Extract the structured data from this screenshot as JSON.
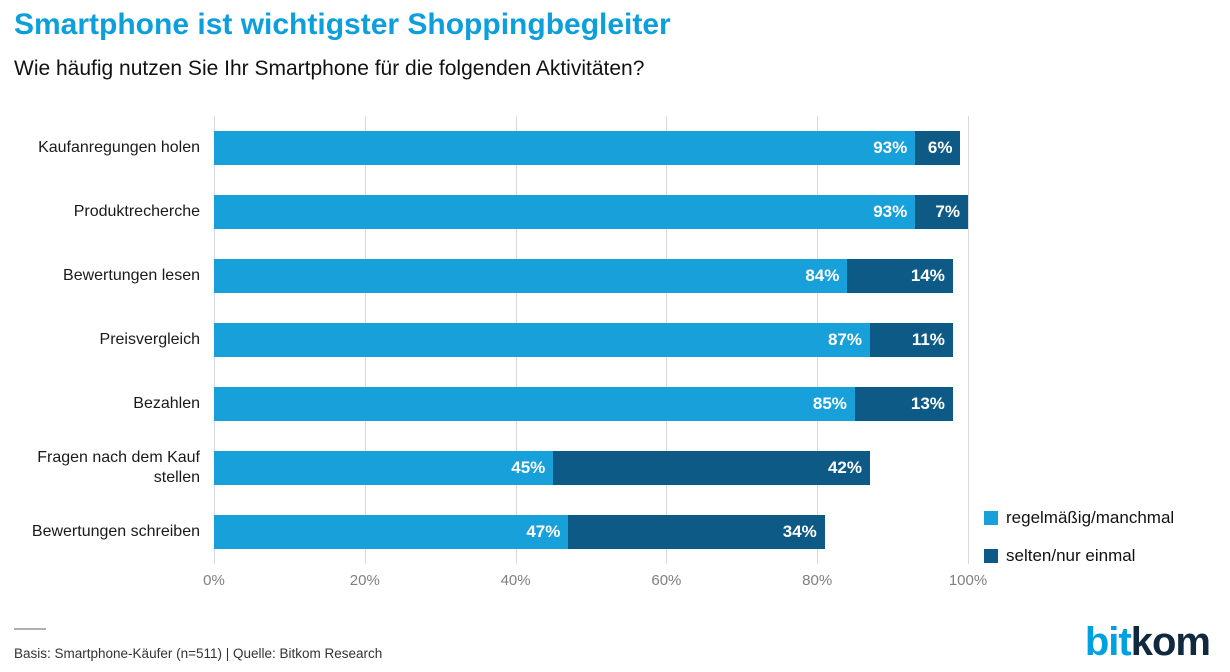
{
  "header": {
    "title": "Smartphone ist wichtigster Shoppingbegleiter",
    "subtitle": "Wie häufig nutzen Sie Ihr Smartphone für die folgenden Aktivitäten?"
  },
  "colors": {
    "title_blue": "#0c9fdc",
    "bar_light_blue": "#17a0da",
    "bar_dark_blue": "#0e5a87",
    "gridline": "#d9d9d9",
    "tick_text": "#7f7f7f"
  },
  "chart_data": {
    "type": "bar",
    "orientation": "horizontal",
    "stacked": true,
    "grid": true,
    "legend_position": "right",
    "xlim": [
      0,
      100
    ],
    "x_ticks": [
      "0%",
      "20%",
      "40%",
      "60%",
      "80%",
      "100%"
    ],
    "categories": [
      "Kaufanregungen holen",
      "Produktrecherche",
      "Bewertungen lesen",
      "Preisvergleich",
      "Bezahlen",
      "Fragen nach dem Kauf stellen",
      "Bewertungen schreiben"
    ],
    "series": [
      {
        "name": "regelmäßig/manchmal",
        "color": "#17a0da",
        "values": [
          93,
          93,
          84,
          87,
          85,
          45,
          47
        ]
      },
      {
        "name": "selten/nur einmal",
        "color": "#0e5a87",
        "values": [
          6,
          7,
          14,
          11,
          13,
          42,
          34
        ]
      }
    ]
  },
  "footer": {
    "source": "Basis: Smartphone-Käufer  (n=511) | Quelle: Bitkom Research"
  },
  "logo": {
    "part1": "bit",
    "part2": "kom"
  }
}
